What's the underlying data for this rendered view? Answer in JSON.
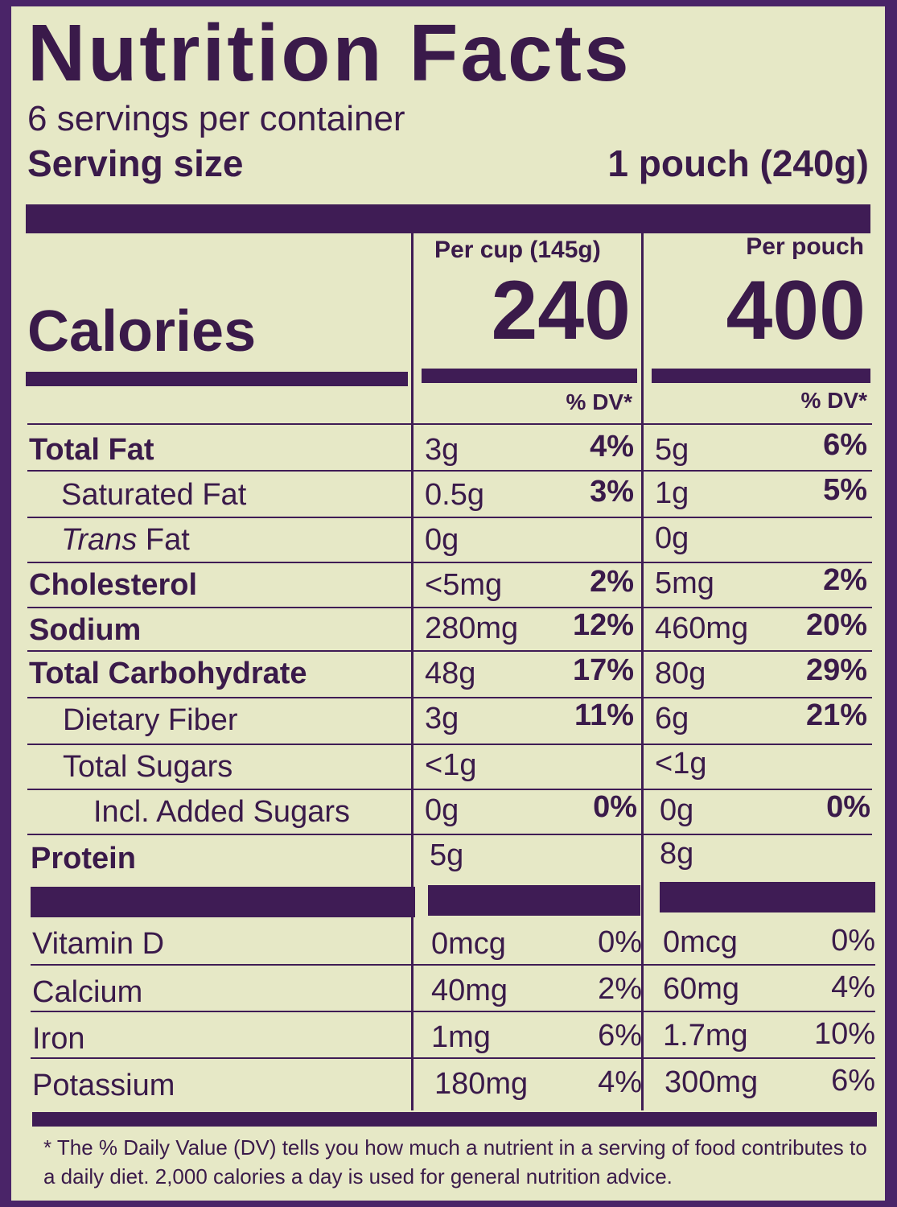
{
  "title": "Nutrition Facts",
  "servings_per_container": "6 servings per container",
  "serving_size_label": "Serving size",
  "serving_size_value": "1 pouch (240g)",
  "columns": {
    "cup_header": "Per cup (145g)",
    "pouch_header": "Per pouch",
    "dv_header": "% DV*"
  },
  "calories": {
    "label": "Calories",
    "per_cup": "240",
    "per_pouch": "400"
  },
  "nutrients": [
    {
      "label": "Total Fat",
      "cup": "3g",
      "cup_dv": "4%",
      "pouch": "5g",
      "pouch_dv": "6%"
    },
    {
      "label": "Saturated Fat",
      "cup": "0.5g",
      "cup_dv": "3%",
      "pouch": "1g",
      "pouch_dv": "5%"
    },
    {
      "label_italic": "Trans",
      "label_rest": " Fat",
      "cup": "0g",
      "cup_dv": "",
      "pouch": "0g",
      "pouch_dv": ""
    },
    {
      "label": "Cholesterol",
      "cup": "<5mg",
      "cup_dv": "2%",
      "pouch": "5mg",
      "pouch_dv": "2%"
    },
    {
      "label": "Sodium",
      "cup": "280mg",
      "cup_dv": "12%",
      "pouch": "460mg",
      "pouch_dv": "20%"
    },
    {
      "label": "Total Carbohydrate",
      "cup": "48g",
      "cup_dv": "17%",
      "pouch": "80g",
      "pouch_dv": "29%"
    },
    {
      "label": "Dietary Fiber",
      "cup": "3g",
      "cup_dv": "11%",
      "pouch": "6g",
      "pouch_dv": "21%"
    },
    {
      "label": "Total Sugars",
      "cup": "<1g",
      "cup_dv": "",
      "pouch": "<1g",
      "pouch_dv": ""
    },
    {
      "label": "Incl. Added Sugars",
      "cup": "0g",
      "cup_dv": "0%",
      "pouch": "0g",
      "pouch_dv": "0%"
    },
    {
      "label": "Protein",
      "cup": "5g",
      "cup_dv": "",
      "pouch": "8g",
      "pouch_dv": ""
    }
  ],
  "vitamins": [
    {
      "label": "Vitamin D",
      "cup": "0mcg",
      "cup_dv": "0%",
      "pouch": "0mcg",
      "pouch_dv": "0%"
    },
    {
      "label": "Calcium",
      "cup": "40mg",
      "cup_dv": "2%",
      "pouch": "60mg",
      "pouch_dv": "4%"
    },
    {
      "label": "Iron",
      "cup": "1mg",
      "cup_dv": "6%",
      "pouch": "1.7mg",
      "pouch_dv": "10%"
    },
    {
      "label": "Potassium",
      "cup": "180mg",
      "cup_dv": "4%",
      "pouch": "300mg",
      "pouch_dv": "6%"
    }
  ],
  "footnote": "* The % Daily Value (DV) tells you how much a nutrient in a serving of food contributes to a daily diet. 2,000 calories a day is used for general nutrition advice.",
  "colors": {
    "label_bg": "#e6e8c6",
    "ink": "#3f1c55",
    "border": "#4a2468"
  }
}
